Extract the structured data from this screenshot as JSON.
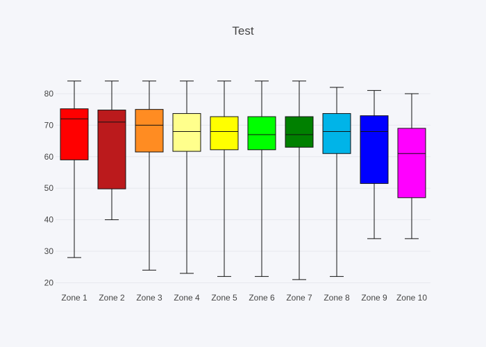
{
  "chart_data": {
    "type": "box",
    "title": "Test",
    "xlabel": "",
    "ylabel": "",
    "ylim": [
      19,
      91
    ],
    "yticks": [
      20,
      30,
      40,
      50,
      60,
      70,
      80
    ],
    "grid": true,
    "categories": [
      "Zone 1",
      "Zone 2",
      "Zone 3",
      "Zone 4",
      "Zone 5",
      "Zone 6",
      "Zone 7",
      "Zone 8",
      "Zone 9",
      "Zone 10"
    ],
    "boxes": [
      {
        "category": "Zone 1",
        "min": 28,
        "q1": 59,
        "median": 72,
        "q3": 75.2,
        "max": 84,
        "color": "#ff0000"
      },
      {
        "category": "Zone 2",
        "min": 40,
        "q1": 49.8,
        "median": 71,
        "q3": 74.8,
        "max": 84,
        "color": "#bb1a1c"
      },
      {
        "category": "Zone 3",
        "min": 24,
        "q1": 61.5,
        "median": 70,
        "q3": 75,
        "max": 84,
        "color": "#ff8c22"
      },
      {
        "category": "Zone 4",
        "min": 23,
        "q1": 61.7,
        "median": 68,
        "q3": 73.7,
        "max": 84,
        "color": "#ffff8c"
      },
      {
        "category": "Zone 5",
        "min": 22,
        "q1": 62.2,
        "median": 68,
        "q3": 72.7,
        "max": 84,
        "color": "#ffff00"
      },
      {
        "category": "Zone 6",
        "min": 22,
        "q1": 62.2,
        "median": 67,
        "q3": 72.7,
        "max": 84,
        "color": "#00ff00"
      },
      {
        "category": "Zone 7",
        "min": 21,
        "q1": 63,
        "median": 67,
        "q3": 72.7,
        "max": 84,
        "color": "#008000"
      },
      {
        "category": "Zone 8",
        "min": 22,
        "q1": 61,
        "median": 68,
        "q3": 73.7,
        "max": 82,
        "color": "#00b4e8"
      },
      {
        "category": "Zone 9",
        "min": 34,
        "q1": 51.5,
        "median": 68,
        "q3": 73,
        "max": 81,
        "color": "#0000ff"
      },
      {
        "category": "Zone 10",
        "min": 34,
        "q1": 47,
        "median": 61,
        "q3": 69,
        "max": 80,
        "color": "#ff00ff"
      }
    ]
  }
}
